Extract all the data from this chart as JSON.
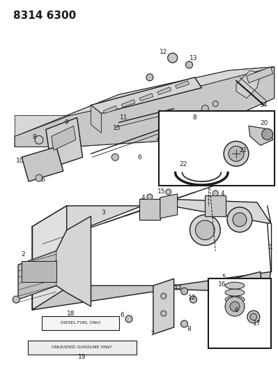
{
  "title": "8314 6300",
  "background_color": "#ffffff",
  "line_color": "#1a1a1a",
  "figsize": [
    3.99,
    5.33
  ],
  "dpi": 100,
  "title_fontsize": 11,
  "title_fontweight": "bold",
  "label_fontsize": 6.5,
  "diesel_label": "DIESEL FUEL ONLY",
  "gasoline_label": "UNLEADED GASOLINE ONLY"
}
